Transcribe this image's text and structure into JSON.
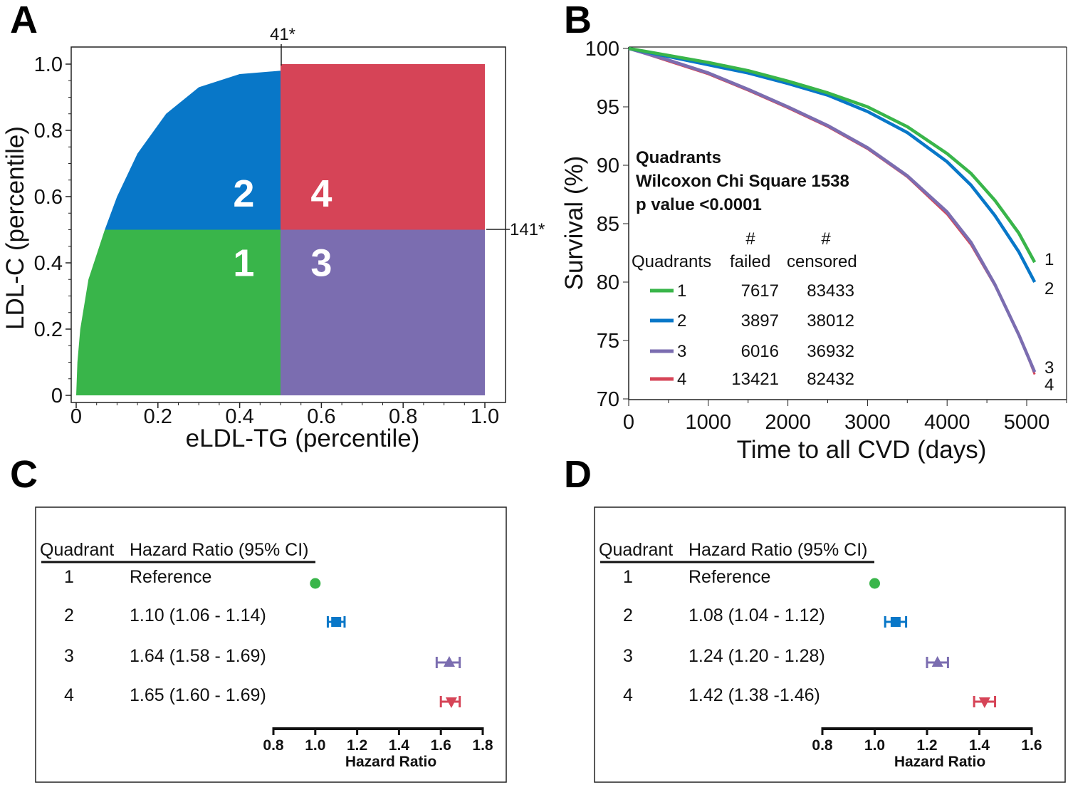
{
  "colors": {
    "q1": "#39b54a",
    "q2": "#0877c8",
    "q3": "#7b6db0",
    "q4": "#d64457"
  },
  "chart_data": [
    {
      "panel": "A",
      "type": "scatter",
      "xlabel": "eLDL-TG (percentile)",
      "ylabel": "LDL-C (percentile)",
      "xlim": [
        0,
        1
      ],
      "ylim": [
        0,
        1
      ],
      "xticks": [
        "0",
        "0.2",
        "0.4",
        "0.6",
        "0.8",
        "1.0"
      ],
      "xtick_values": [
        0,
        0.2,
        0.4,
        0.6,
        0.8,
        1.0
      ],
      "yticks": [
        "0",
        "0.2",
        "0.4",
        "0.6",
        "0.8",
        "1.0"
      ],
      "ytick_values": [
        0,
        0.2,
        0.4,
        0.6,
        0.8,
        1.0
      ],
      "cutoff_x": {
        "value": 0.5,
        "label": "41*"
      },
      "cutoff_y": {
        "value": 0.5,
        "label": "141*"
      },
      "upper_left_boundary": [
        [
          0,
          0
        ],
        [
          0.003,
          0.1
        ],
        [
          0.01,
          0.2
        ],
        [
          0.03,
          0.35
        ],
        [
          0.07,
          0.5
        ],
        [
          0.1,
          0.6
        ],
        [
          0.15,
          0.73
        ],
        [
          0.22,
          0.85
        ],
        [
          0.3,
          0.93
        ],
        [
          0.4,
          0.97
        ],
        [
          0.5,
          0.98
        ]
      ],
      "quadrants": [
        {
          "label": "1",
          "color_key": "q1",
          "x": [
            0,
            0.5
          ],
          "y": [
            0,
            0.5
          ]
        },
        {
          "label": "2",
          "color_key": "q2",
          "x": [
            0,
            0.5
          ],
          "y": [
            0.5,
            1
          ]
        },
        {
          "label": "3",
          "color_key": "q3",
          "x": [
            0.5,
            1
          ],
          "y": [
            0,
            0.5
          ]
        },
        {
          "label": "4",
          "color_key": "q4",
          "x": [
            0.5,
            1
          ],
          "y": [
            0.5,
            1
          ]
        }
      ]
    },
    {
      "panel": "B",
      "type": "line",
      "xlabel": "Time to all CVD (days)",
      "ylabel": "Survival (%)",
      "xlim": [
        0,
        5500
      ],
      "ylim": [
        70,
        100
      ],
      "xticks": [
        "0",
        "1000",
        "2000",
        "3000",
        "4000",
        "5000"
      ],
      "xtick_values": [
        0,
        1000,
        2000,
        3000,
        4000,
        5000
      ],
      "yticks": [
        "70",
        "75",
        "80",
        "85",
        "90",
        "95",
        "100"
      ],
      "ytick_values": [
        70,
        75,
        80,
        85,
        90,
        95,
        100
      ],
      "annotation": [
        "Quadrants",
        "Wilcoxon Chi Square 1538",
        "p value <0.0001"
      ],
      "table_header": {
        "hash": "#",
        "col1": "Quadrants",
        "col2": "failed",
        "col3": "censored"
      },
      "series": [
        {
          "name": "1",
          "color_key": "q1",
          "failed": "7617",
          "censored": "83433",
          "x": [
            0,
            500,
            1000,
            1500,
            2000,
            2500,
            3000,
            3500,
            4000,
            4300,
            4600,
            4900,
            5100
          ],
          "y": [
            100,
            99.4,
            98.8,
            98.1,
            97.2,
            96.2,
            95.0,
            93.3,
            91.0,
            89.3,
            87.0,
            84.2,
            81.7
          ]
        },
        {
          "name": "2",
          "color_key": "q2",
          "failed": "3897",
          "censored": "38012",
          "x": [
            0,
            500,
            1000,
            1500,
            2000,
            2500,
            3000,
            3500,
            4000,
            4300,
            4600,
            4900,
            5100
          ],
          "y": [
            100,
            99.3,
            98.6,
            97.9,
            97.0,
            96.0,
            94.6,
            92.8,
            90.3,
            88.3,
            85.7,
            82.6,
            80.0
          ]
        },
        {
          "name": "3",
          "color_key": "q3",
          "failed": "6016",
          "censored": "36932",
          "x": [
            0,
            500,
            1000,
            1500,
            2000,
            2500,
            3000,
            3500,
            4000,
            4300,
            4600,
            4900,
            5100
          ],
          "y": [
            100,
            99.0,
            97.9,
            96.5,
            95.0,
            93.4,
            91.5,
            89.1,
            86.0,
            83.4,
            79.8,
            75.5,
            72.3
          ]
        },
        {
          "name": "4",
          "color_key": "q4",
          "failed": "13421",
          "censored": "82432",
          "x": [
            0,
            500,
            1000,
            1500,
            2000,
            2500,
            3000,
            3500,
            4000,
            4300,
            4600,
            4900,
            5100
          ],
          "y": [
            100,
            98.9,
            97.8,
            96.4,
            94.9,
            93.3,
            91.4,
            89.0,
            85.8,
            83.2,
            79.7,
            75.6,
            72.1
          ]
        }
      ]
    },
    {
      "panel": "C",
      "type": "forest",
      "header": {
        "col1": "Quadrant",
        "col2": "Hazard Ratio (95% CI)"
      },
      "xlabel": "Hazard Ratio",
      "xlim": [
        0.8,
        1.8
      ],
      "xticks": [
        "0.8",
        "1.0",
        "1.2",
        "1.4",
        "1.6",
        "1.8"
      ],
      "xtick_values": [
        0.8,
        1.0,
        1.2,
        1.4,
        1.6,
        1.8
      ],
      "rows": [
        {
          "quadrant": "1",
          "text": "Reference",
          "hr": 1.0,
          "lo": 1.0,
          "hi": 1.0,
          "marker": "circle",
          "color_key": "q1"
        },
        {
          "quadrant": "2",
          "text": "1.10 (1.06 - 1.14)",
          "hr": 1.1,
          "lo": 1.06,
          "hi": 1.14,
          "marker": "square",
          "color_key": "q2"
        },
        {
          "quadrant": "3",
          "text": "1.64 (1.58 - 1.69)",
          "hr": 1.64,
          "lo": 1.58,
          "hi": 1.69,
          "marker": "triangle-up",
          "color_key": "q3"
        },
        {
          "quadrant": "4",
          "text": "1.65 (1.60 - 1.69)",
          "hr": 1.65,
          "lo": 1.6,
          "hi": 1.69,
          "marker": "triangle-down",
          "color_key": "q4"
        }
      ]
    },
    {
      "panel": "D",
      "type": "forest",
      "header": {
        "col1": "Quadrant",
        "col2": "Hazard Ratio (95% CI)"
      },
      "xlabel": "Hazard Ratio",
      "xlim": [
        0.8,
        1.6
      ],
      "xticks": [
        "0.8",
        "1.0",
        "1.2",
        "1.4",
        "1.6"
      ],
      "xtick_values": [
        0.8,
        1.0,
        1.2,
        1.4,
        1.6
      ],
      "rows": [
        {
          "quadrant": "1",
          "text": "Reference",
          "hr": 1.0,
          "lo": 1.0,
          "hi": 1.0,
          "marker": "circle",
          "color_key": "q1"
        },
        {
          "quadrant": "2",
          "text": "1.08 (1.04 - 1.12)",
          "hr": 1.08,
          "lo": 1.04,
          "hi": 1.12,
          "marker": "square",
          "color_key": "q2"
        },
        {
          "quadrant": "3",
          "text": "1.24 (1.20 - 1.28)",
          "hr": 1.24,
          "lo": 1.2,
          "hi": 1.28,
          "marker": "triangle-up",
          "color_key": "q3"
        },
        {
          "quadrant": "4",
          "text": "1.42 (1.38 -1.46)",
          "hr": 1.42,
          "lo": 1.38,
          "hi": 1.46,
          "marker": "triangle-down",
          "color_key": "q4"
        }
      ]
    }
  ]
}
